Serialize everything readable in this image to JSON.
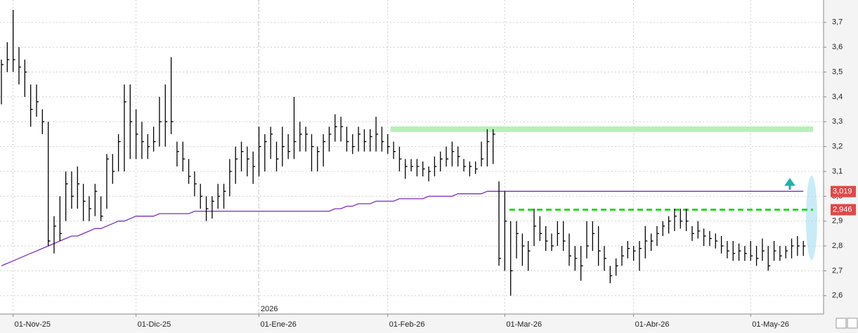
{
  "chart_data": {
    "type": "ohlc",
    "year_label": "2026",
    "categories": [
      null,
      null,
      "01-Nov-25",
      null,
      null,
      null,
      null,
      null,
      null,
      null,
      null,
      null,
      null,
      null,
      null,
      null,
      null,
      null,
      null,
      null,
      null,
      null,
      null,
      "01-Dic-25",
      null,
      null,
      null,
      null,
      null,
      null,
      null,
      null,
      null,
      null,
      null,
      null,
      null,
      null,
      null,
      null,
      null,
      null,
      null,
      null,
      "01-Ene-26",
      null,
      null,
      null,
      null,
      null,
      null,
      null,
      null,
      null,
      null,
      null,
      null,
      null,
      null,
      null,
      null,
      null,
      null,
      null,
      null,
      null,
      "01-Feb-26",
      null,
      null,
      null,
      null,
      null,
      null,
      null,
      null,
      null,
      null,
      null,
      null,
      null,
      null,
      null,
      null,
      null,
      null,
      null,
      "01-Mar-26",
      null,
      null,
      null,
      null,
      null,
      null,
      null,
      null,
      null,
      null,
      null,
      null,
      null,
      null,
      null,
      null,
      null,
      null,
      null,
      null,
      null,
      "01-Abr-26",
      null,
      null,
      null,
      null,
      null,
      null,
      null,
      null,
      null,
      null,
      null,
      null,
      null,
      null,
      null,
      null,
      null,
      null,
      null,
      "01-May-26",
      null,
      null,
      null,
      null,
      null,
      null,
      null,
      null,
      null
    ],
    "ohlc": {
      "color": "#000000",
      "high": [
        3.55,
        3.62,
        3.75,
        3.6,
        3.55,
        3.45,
        3.45,
        3.35,
        3.3,
        2.92,
        3.0,
        3.1,
        3.1,
        3.12,
        3.05,
        3.0,
        3.05,
        3.0,
        3.17,
        3.17,
        3.25,
        3.45,
        3.45,
        3.35,
        3.3,
        3.25,
        3.28,
        3.4,
        3.45,
        3.56,
        3.22,
        3.22,
        3.15,
        3.1,
        3.05,
        3.0,
        3.0,
        3.05,
        3.05,
        3.15,
        3.2,
        3.22,
        3.2,
        3.18,
        3.28,
        3.25,
        3.28,
        3.22,
        3.28,
        3.25,
        3.4,
        3.3,
        3.28,
        3.25,
        3.2,
        3.25,
        3.28,
        3.33,
        3.32,
        3.28,
        3.25,
        3.28,
        3.27,
        3.27,
        3.32,
        3.28,
        3.25,
        3.22,
        3.2,
        3.15,
        3.15,
        3.15,
        3.14,
        3.12,
        3.16,
        3.18,
        3.2,
        3.22,
        3.2,
        3.15,
        3.14,
        3.14,
        3.22,
        3.27,
        3.27,
        3.06,
        3.02,
        2.9,
        2.9,
        2.85,
        2.82,
        2.95,
        2.92,
        2.88,
        2.85,
        2.9,
        2.9,
        2.85,
        2.8,
        2.8,
        2.9,
        2.9,
        2.88,
        2.8,
        2.72,
        2.75,
        2.8,
        2.82,
        2.8,
        2.82,
        2.88,
        2.85,
        2.88,
        2.9,
        2.92,
        2.95,
        2.95,
        2.95,
        2.88,
        2.9,
        2.87,
        2.86,
        2.85,
        2.84,
        2.82,
        2.82,
        2.81,
        2.8,
        2.82,
        2.8,
        2.83,
        2.8,
        2.82,
        2.8,
        2.8,
        2.83,
        2.84,
        2.82
      ],
      "low": [
        3.37,
        3.5,
        3.5,
        3.45,
        3.4,
        3.28,
        3.32,
        3.25,
        2.8,
        2.77,
        2.82,
        2.9,
        2.95,
        2.95,
        2.9,
        2.9,
        2.92,
        2.9,
        2.95,
        3.05,
        3.1,
        3.1,
        3.15,
        3.15,
        3.15,
        3.15,
        3.18,
        3.2,
        3.2,
        3.25,
        3.12,
        3.1,
        3.05,
        3.0,
        2.95,
        2.9,
        2.91,
        2.95,
        2.95,
        3.0,
        3.05,
        3.1,
        3.08,
        3.05,
        3.08,
        3.1,
        3.15,
        3.1,
        3.12,
        3.15,
        3.15,
        3.18,
        3.18,
        3.1,
        3.1,
        3.12,
        3.18,
        3.22,
        3.22,
        3.18,
        3.17,
        3.18,
        3.18,
        3.18,
        3.18,
        3.18,
        3.17,
        3.15,
        3.1,
        3.07,
        3.1,
        3.08,
        3.08,
        3.06,
        3.08,
        3.1,
        3.12,
        3.12,
        3.12,
        3.1,
        3.08,
        3.09,
        3.12,
        3.12,
        3.13,
        2.72,
        2.7,
        2.6,
        2.75,
        2.72,
        2.7,
        2.8,
        2.82,
        2.78,
        2.78,
        2.8,
        2.78,
        2.72,
        2.7,
        2.66,
        2.75,
        2.78,
        2.72,
        2.7,
        2.65,
        2.68,
        2.72,
        2.75,
        2.74,
        2.7,
        2.75,
        2.78,
        2.8,
        2.84,
        2.85,
        2.86,
        2.87,
        2.86,
        2.82,
        2.83,
        2.8,
        2.8,
        2.79,
        2.77,
        2.75,
        2.74,
        2.74,
        2.74,
        2.74,
        2.72,
        2.74,
        2.7,
        2.74,
        2.74,
        2.75,
        2.75,
        2.76,
        2.76
      ],
      "close": [
        3.53,
        3.55,
        3.55,
        3.52,
        3.5,
        3.35,
        3.38,
        3.3,
        2.82,
        2.88,
        2.85,
        3.05,
        3.0,
        3.05,
        2.98,
        2.95,
        3.02,
        2.92,
        3.15,
        3.1,
        3.22,
        3.38,
        3.3,
        3.25,
        3.22,
        3.2,
        3.22,
        3.3,
        3.3,
        3.3,
        3.18,
        3.15,
        3.08,
        3.05,
        3.0,
        2.95,
        2.98,
        3.0,
        3.02,
        3.1,
        3.15,
        3.18,
        3.15,
        3.12,
        3.2,
        3.22,
        3.25,
        3.15,
        3.2,
        3.18,
        3.22,
        3.25,
        3.25,
        3.2,
        3.18,
        3.22,
        3.25,
        3.28,
        3.28,
        3.22,
        3.2,
        3.25,
        3.22,
        3.24,
        3.25,
        3.22,
        3.2,
        3.18,
        3.15,
        3.12,
        3.12,
        3.12,
        3.11,
        3.1,
        3.12,
        3.15,
        3.15,
        3.18,
        3.16,
        3.12,
        3.12,
        3.11,
        3.15,
        3.22,
        3.25,
        2.75,
        2.9,
        2.7,
        2.85,
        2.8,
        2.78,
        2.88,
        2.85,
        2.82,
        2.8,
        2.85,
        2.82,
        2.76,
        2.75,
        2.72,
        2.8,
        2.85,
        2.78,
        2.75,
        2.68,
        2.72,
        2.76,
        2.79,
        2.78,
        2.79,
        2.82,
        2.82,
        2.85,
        2.88,
        2.9,
        2.92,
        2.9,
        2.9,
        2.85,
        2.86,
        2.84,
        2.83,
        2.82,
        2.8,
        2.78,
        2.77,
        2.78,
        2.77,
        2.76,
        2.75,
        2.78,
        2.72,
        2.78,
        2.76,
        2.78,
        2.8,
        2.8,
        2.8
      ]
    },
    "moving_average": {
      "color": "#7b2fc0",
      "values": [
        2.72,
        2.73,
        2.74,
        2.75,
        2.76,
        2.77,
        2.78,
        2.79,
        2.8,
        2.81,
        2.82,
        2.83,
        2.84,
        2.84,
        2.85,
        2.86,
        2.87,
        2.87,
        2.88,
        2.89,
        2.9,
        2.9,
        2.91,
        2.92,
        2.92,
        2.92,
        2.92,
        2.93,
        2.93,
        2.93,
        2.93,
        2.93,
        2.93,
        2.94,
        2.94,
        2.94,
        2.94,
        2.94,
        2.94,
        2.94,
        2.94,
        2.94,
        2.94,
        2.94,
        2.94,
        2.94,
        2.94,
        2.94,
        2.94,
        2.94,
        2.94,
        2.94,
        2.94,
        2.94,
        2.94,
        2.94,
        2.94,
        2.95,
        2.95,
        2.96,
        2.96,
        2.97,
        2.97,
        2.97,
        2.98,
        2.98,
        2.98,
        2.98,
        2.99,
        2.99,
        2.99,
        2.99,
        2.99,
        3.0,
        3.0,
        3.0,
        3.0,
        3.0,
        3.01,
        3.01,
        3.01,
        3.01,
        3.01,
        3.02,
        3.02,
        3.02,
        3.02,
        3.02,
        3.02,
        3.02,
        3.02,
        3.02,
        3.02,
        3.02,
        3.02,
        3.02,
        3.02,
        3.02,
        3.02,
        3.02,
        3.02,
        3.02,
        3.02,
        3.02,
        3.02,
        3.02,
        3.02,
        3.02,
        3.02,
        3.02,
        3.02,
        3.02,
        3.02,
        3.02,
        3.02,
        3.02,
        3.02,
        3.02,
        3.02,
        3.02,
        3.02,
        3.02,
        3.02,
        3.02,
        3.02,
        3.02,
        3.02,
        3.02,
        3.02,
        3.02,
        3.02,
        3.02,
        3.02,
        3.02,
        3.02,
        3.02,
        3.02,
        3.02
      ]
    },
    "resistance_level": {
      "value": 3.27,
      "color": "#b8f0b8"
    },
    "price_labels": [
      {
        "value": 3.019,
        "label": "3,019",
        "color": "#e04848"
      },
      {
        "value": 2.946,
        "label": "2,946",
        "color": "#e04848"
      }
    ],
    "support_line_color": "#22dd22",
    "ylim": [
      2.526,
      3.79
    ],
    "yticks": [
      {
        "value": 2.6,
        "label": "2,6"
      },
      {
        "value": 2.7,
        "label": "2,7"
      },
      {
        "value": 2.8,
        "label": "2,8"
      },
      {
        "value": 2.9,
        "label": "2,9"
      },
      {
        "value": 3.0,
        "label": "3,0"
      },
      {
        "value": 3.1,
        "label": "3,1"
      },
      {
        "value": 3.2,
        "label": "3,2"
      },
      {
        "value": 3.3,
        "label": "3,3"
      },
      {
        "value": 3.4,
        "label": "3,4"
      },
      {
        "value": 3.5,
        "label": "3,5"
      },
      {
        "value": 3.6,
        "label": "3,6"
      },
      {
        "value": 3.7,
        "label": "3,7"
      }
    ],
    "grid": true
  }
}
